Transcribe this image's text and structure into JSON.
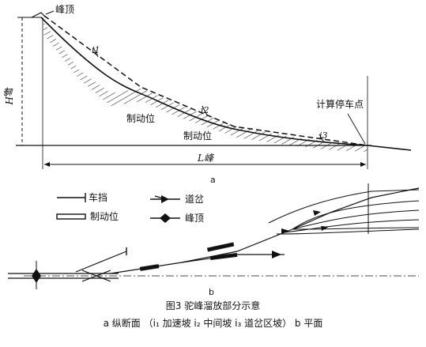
{
  "profile": {
    "hump_label": "峰顶",
    "brake_label_upper": "制动位",
    "brake_label_lower": "制动位",
    "stop_point_label": "计算停车点",
    "height_label": "H峰",
    "length_label": "L峰",
    "grade_labels": [
      "i1",
      "i2",
      "i3"
    ],
    "part_label": "a"
  },
  "legend": {
    "items": [
      {
        "id": "buffer-stop",
        "label": "车挡"
      },
      {
        "id": "turnout",
        "label": "道岔"
      },
      {
        "id": "brake-position",
        "label": "制动位"
      },
      {
        "id": "hump-crest",
        "label": "峰顶"
      }
    ]
  },
  "plan": {
    "part_label": "b"
  },
  "caption": {
    "title": "图3  驼峰溜放部分示意",
    "subtitle": "a 纵断面 （i₁ 加速坡  i₂ 中间坡  i₃ 道岔区坡） b 平面"
  },
  "colors": {
    "ink": "#111111",
    "paper": "#ffffff"
  }
}
